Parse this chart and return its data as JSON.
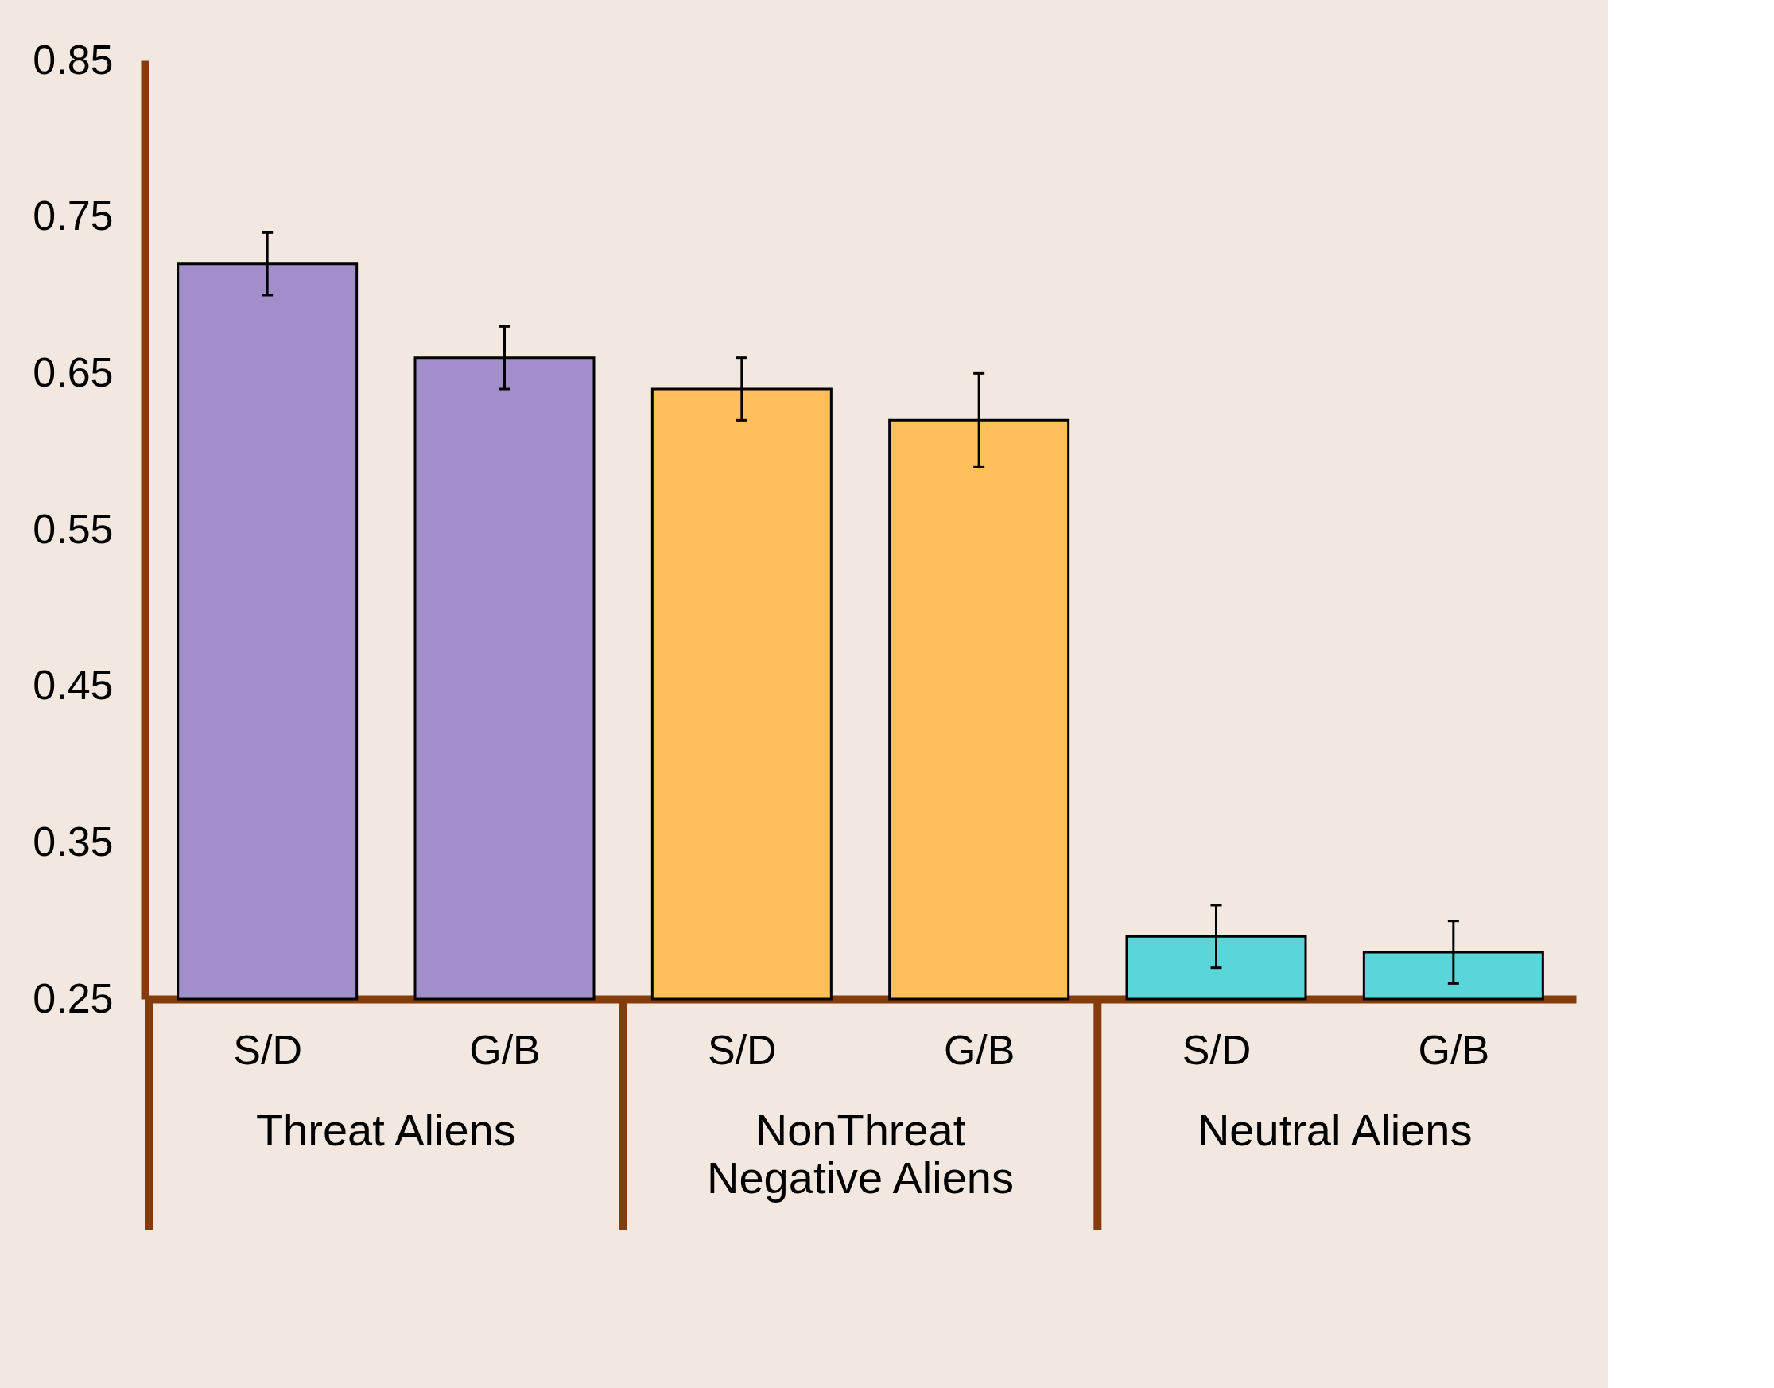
{
  "chart_data": {
    "type": "bar",
    "categories": [
      "S/D",
      "G/B",
      "S/D",
      "G/B",
      "S/D",
      "G/B"
    ],
    "series": [
      {
        "name": "Threat Aliens",
        "color": "#a38ecc",
        "values": [
          0.72,
          0.66,
          null,
          null,
          null,
          null
        ],
        "errors": [
          0.02,
          0.02,
          null,
          null,
          null,
          null
        ]
      },
      {
        "name": "NonThreat Negative Aliens",
        "color": "#ffbf5a",
        "values": [
          null,
          null,
          0.64,
          0.62,
          null,
          null
        ],
        "errors": [
          null,
          null,
          0.02,
          0.03,
          null,
          null
        ]
      },
      {
        "name": "Neutral Aliens",
        "color": "#5ad5da",
        "values": [
          null,
          null,
          null,
          null,
          0.29,
          0.28
        ],
        "errors": [
          null,
          null,
          null,
          null,
          0.02,
          0.02
        ]
      }
    ],
    "ylim": [
      0.25,
      0.85
    ],
    "yticks": [
      0.25,
      0.35,
      0.45,
      0.55,
      0.65,
      0.75,
      0.85
    ],
    "grid": false,
    "legend": false
  }
}
